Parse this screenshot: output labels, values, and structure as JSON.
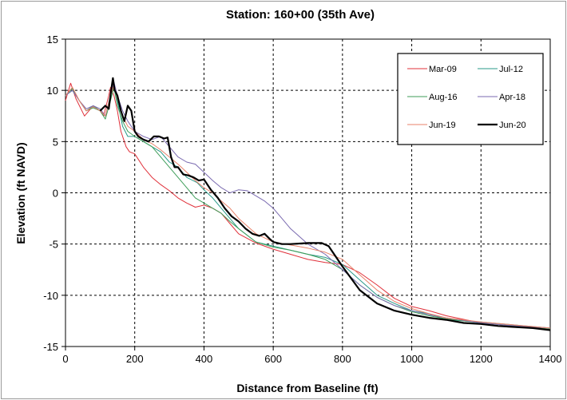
{
  "chart_data": {
    "type": "line",
    "title": "Station: 160+00 (35th Ave)",
    "xlabel": "Distance from Baseline (ft)",
    "ylabel": "Elevation (ft NAVD)",
    "xlim": [
      0,
      1400
    ],
    "ylim": [
      -15,
      15
    ],
    "xticks": [
      0,
      200,
      400,
      600,
      800,
      1000,
      1200,
      1400
    ],
    "yticks": [
      -15,
      -10,
      -5,
      0,
      5,
      10,
      15
    ],
    "grid": true,
    "legend_position": "top-right",
    "series": [
      {
        "name": "Mar-09",
        "color": "#e0303a",
        "width": 1,
        "x": [
          0,
          15,
          30,
          55,
          80,
          100,
          110,
          125,
          130,
          140,
          150,
          160,
          175,
          185,
          200,
          225,
          250,
          275,
          300,
          325,
          350,
          375,
          400,
          425,
          450,
          475,
          500,
          550,
          600,
          650,
          700,
          750,
          800,
          850,
          900,
          950,
          1000,
          1050,
          1100,
          1200,
          1300,
          1400
        ],
        "y": [
          9,
          10.7,
          9.2,
          7.5,
          8.5,
          8,
          7.5,
          9.5,
          10.3,
          9.5,
          8,
          6,
          4.5,
          4,
          3.8,
          2.5,
          1.5,
          0.8,
          0.2,
          -0.5,
          -1,
          -1.4,
          -1.2,
          -1.5,
          -2,
          -3,
          -4,
          -4.9,
          -5.5,
          -6,
          -6.5,
          -6.8,
          -7,
          -7.8,
          -9,
          -10.3,
          -11.1,
          -11.5,
          -12,
          -12.7,
          -13,
          -13.3
        ]
      },
      {
        "name": "Jul-12",
        "color": "#2a9a8a",
        "width": 1,
        "x": [
          0,
          20,
          40,
          60,
          80,
          100,
          115,
          130,
          140,
          150,
          165,
          180,
          200,
          225,
          250,
          275,
          300,
          325,
          350,
          380,
          400,
          425,
          450,
          475,
          500,
          550,
          600,
          650,
          700,
          750,
          800,
          850,
          900,
          950,
          1000,
          1050,
          1100,
          1200,
          1300,
          1400
        ],
        "y": [
          9.5,
          10,
          9,
          8,
          8.5,
          8,
          7.5,
          9.5,
          10.5,
          9,
          6.5,
          5.5,
          5.5,
          5,
          4.5,
          4,
          3,
          2.5,
          1.5,
          1,
          0.3,
          -0.5,
          -1.5,
          -2.5,
          -3.5,
          -4.8,
          -5.2,
          -5.6,
          -6,
          -6.3,
          -7,
          -8.5,
          -10,
          -10.8,
          -11.5,
          -11.8,
          -12.4,
          -12.6,
          -12.9,
          -13.2
        ]
      },
      {
        "name": "Aug-16",
        "color": "#3f9e5a",
        "width": 1,
        "x": [
          0,
          20,
          40,
          60,
          80,
          100,
          115,
          130,
          140,
          150,
          165,
          180,
          200,
          225,
          250,
          275,
          300,
          325,
          350,
          375,
          400,
          425,
          450,
          475,
          500,
          550,
          600,
          650,
          700,
          750,
          800,
          850,
          900,
          950,
          1000,
          1050,
          1100,
          1200,
          1300,
          1400
        ],
        "y": [
          9.5,
          10.2,
          9,
          8,
          8.3,
          8,
          7.2,
          9,
          10.3,
          8.5,
          7,
          6,
          5.5,
          5,
          4.5,
          3.5,
          2.5,
          1.5,
          0.5,
          -0.5,
          -1,
          -1.5,
          -2,
          -2.8,
          -3.5,
          -4.8,
          -5.3,
          -5.6,
          -6,
          -6.5,
          -7.5,
          -9,
          -10.2,
          -11,
          -11.6,
          -12,
          -12.3,
          -12.7,
          -13,
          -13.3
        ]
      },
      {
        "name": "Apr-18",
        "color": "#7a6ab0",
        "width": 1,
        "x": [
          0,
          20,
          40,
          60,
          80,
          100,
          115,
          130,
          140,
          150,
          165,
          180,
          200,
          225,
          250,
          275,
          300,
          325,
          350,
          375,
          400,
          425,
          450,
          475,
          500,
          525,
          550,
          575,
          600,
          625,
          650,
          700,
          750,
          800,
          850,
          900,
          950,
          1000,
          1050,
          1100,
          1200,
          1300,
          1400
        ],
        "y": [
          9.5,
          10,
          9,
          8.2,
          8.5,
          8.2,
          7.5,
          9.5,
          10.8,
          9.5,
          8,
          7,
          6,
          5.5,
          5.2,
          5.5,
          4.5,
          3.5,
          3,
          2.8,
          2,
          1.2,
          0.5,
          0,
          0.3,
          0.2,
          -0.3,
          -0.8,
          -1.5,
          -2.5,
          -3.5,
          -5,
          -6,
          -7.5,
          -9,
          -10.2,
          -11,
          -11.5,
          -11.9,
          -12.2,
          -12.7,
          -13,
          -13.2
        ]
      },
      {
        "name": "Jun-19",
        "color": "#e8826a",
        "width": 1,
        "x": [
          0,
          20,
          40,
          60,
          80,
          100,
          115,
          130,
          140,
          150,
          165,
          180,
          200,
          225,
          250,
          275,
          300,
          325,
          350,
          375,
          400,
          425,
          450,
          475,
          500,
          550,
          600,
          650,
          700,
          750,
          800,
          850,
          900,
          950,
          1000,
          1050,
          1100,
          1200,
          1300,
          1400
        ],
        "y": [
          9.5,
          10.3,
          9,
          8,
          8.4,
          8,
          7.5,
          9.5,
          10.5,
          9.2,
          7.5,
          6.5,
          6,
          5.2,
          4.8,
          4.2,
          3.5,
          2.8,
          2,
          1.2,
          0.5,
          0,
          -0.8,
          -1.5,
          -2.5,
          -4,
          -4.8,
          -5.1,
          -5.4,
          -5.8,
          -6.5,
          -8,
          -9.5,
          -10.6,
          -11.3,
          -11.8,
          -12.2,
          -12.6,
          -12.9,
          -13.2
        ]
      },
      {
        "name": "Jun-20",
        "color": "#000000",
        "width": 2.2,
        "x": [
          100,
          115,
          125,
          132,
          137,
          142,
          150,
          160,
          170,
          180,
          190,
          200,
          210,
          225,
          240,
          255,
          270,
          285,
          295,
          305,
          315,
          325,
          340,
          355,
          370,
          385,
          400,
          420,
          440,
          460,
          480,
          500,
          520,
          540,
          560,
          575,
          590,
          600,
          625,
          650,
          700,
          740,
          760,
          800,
          850,
          900,
          950,
          1000,
          1050,
          1100,
          1150,
          1200,
          1250,
          1300,
          1350,
          1400
        ],
        "y": [
          8,
          8.5,
          8.2,
          10,
          11.2,
          10,
          9.5,
          8,
          7,
          8.5,
          8,
          6,
          5.5,
          5.2,
          5,
          5.5,
          5.5,
          5.3,
          5.4,
          3.5,
          2.5,
          2.5,
          1.8,
          1.7,
          1.5,
          1.2,
          1.3,
          0.3,
          -0.5,
          -1.5,
          -2.3,
          -2.8,
          -3.5,
          -4,
          -4.2,
          -4,
          -4.5,
          -4.8,
          -5,
          -5,
          -4.9,
          -4.9,
          -5.2,
          -7.2,
          -9.5,
          -10.8,
          -11.5,
          -11.9,
          -12.2,
          -12.4,
          -12.7,
          -12.8,
          -13,
          -13.1,
          -13.2,
          -13.4
        ]
      }
    ]
  }
}
